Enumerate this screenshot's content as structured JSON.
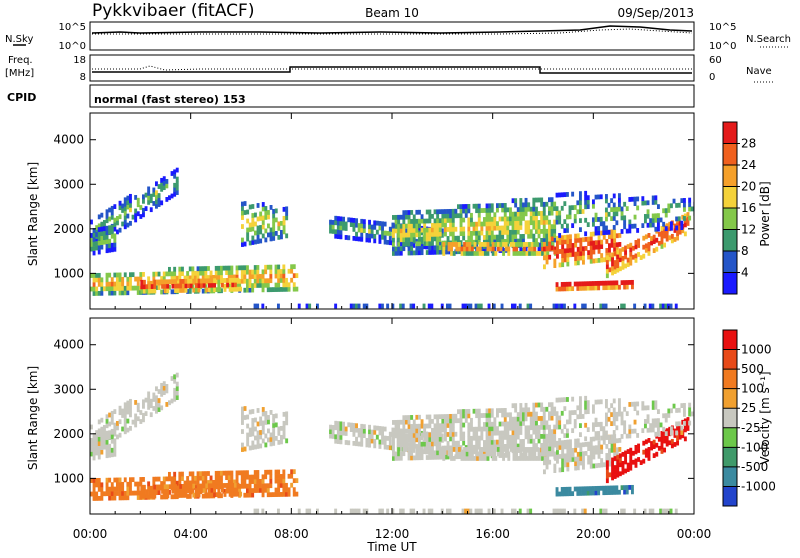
{
  "header": {
    "station": "Pykkvibaer (fitACF)",
    "beam": "Beam 10",
    "date": "09/Sep/2013"
  },
  "top_panels": {
    "nsky_label": "N.Sky",
    "nsky_ticks": [
      "10^5",
      "10^0"
    ],
    "nsearch_label": "N.Search",
    "nsearch_ticks": [
      "10^5",
      "10^0"
    ],
    "freq_label": "Freq.",
    "freq_unit": "[MHz]",
    "freq_ticks": [
      "18",
      "8"
    ],
    "nave_label": "Nave",
    "nave_ticks": [
      "60",
      "0"
    ],
    "cpid_label": "CPID",
    "cpid_text": "normal (fast stereo) 153"
  },
  "chart_data": [
    {
      "type": "heatmap",
      "name": "power",
      "ylabel": "Slant Range [km]",
      "y_ticks": [
        "1000",
        "2000",
        "3000",
        "4000"
      ],
      "y_tick_values": [
        1000,
        2000,
        3000,
        4000
      ],
      "ylim": [
        200,
        4600
      ],
      "xlim": [
        "00:00",
        "24:00"
      ],
      "colorbar": {
        "label": "Power [dB]",
        "ticks": [
          "4",
          "8",
          "12",
          "16",
          "20",
          "24",
          "28"
        ],
        "colors": [
          "#1a1aff",
          "#2455c8",
          "#3c9a6e",
          "#84c84a",
          "#f4d23a",
          "#f5a02a",
          "#f0601e",
          "#e41a1a"
        ]
      }
    },
    {
      "type": "heatmap",
      "name": "velocity",
      "ylabel": "Slant Range [km]",
      "y_ticks": [
        "1000",
        "2000",
        "3000",
        "4000"
      ],
      "y_tick_values": [
        1000,
        2000,
        3000,
        4000
      ],
      "ylim": [
        200,
        4600
      ],
      "xlim": [
        "00:00",
        "24:00"
      ],
      "x_ticks": [
        "00:00",
        "04:00",
        "08:00",
        "12:00",
        "16:00",
        "20:00",
        "00:00"
      ],
      "xlabel": "Time UT",
      "colorbar": {
        "label": "Velocity [m s⁻¹]",
        "ticks": [
          "1000",
          "500",
          "100",
          "25",
          "-25",
          "-100",
          "-500",
          "-1000"
        ],
        "colors": [
          "#2244cc",
          "#3b8aa0",
          "#3f9a6a",
          "#6cc84a",
          "#c8c8c0",
          "#f0a030",
          "#f07a20",
          "#e84a18",
          "#e81010"
        ]
      }
    }
  ]
}
